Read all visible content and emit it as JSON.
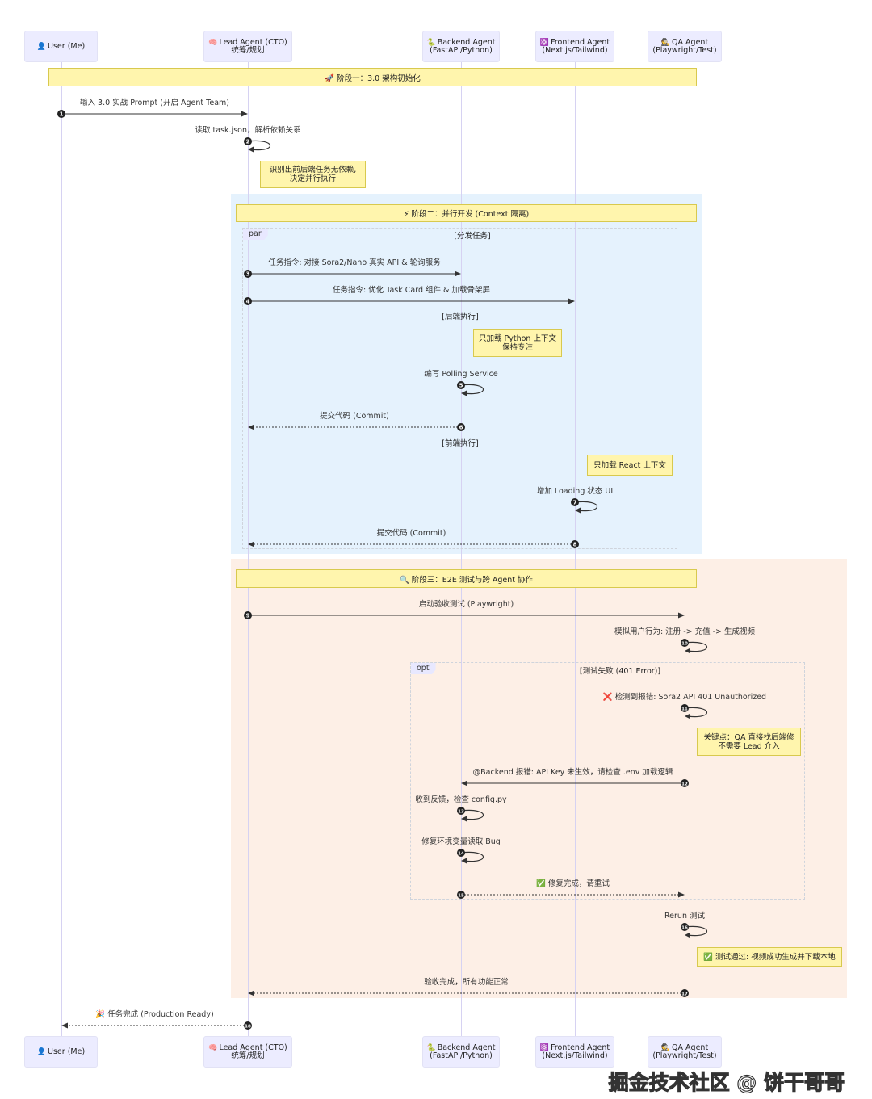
{
  "participants": [
    {
      "id": "user",
      "icon": "person-icon",
      "glyph": "👤",
      "line1": "User (Me)",
      "line2": ""
    },
    {
      "id": "lead",
      "icon": "brain-icon",
      "glyph": "🧠",
      "line1": "Lead Agent (CTO)",
      "line2": "统筹/规划"
    },
    {
      "id": "backend",
      "icon": "snake-icon",
      "glyph": "🐍",
      "line1": "Backend Agent",
      "line2": "(FastAPI/Python)"
    },
    {
      "id": "frontend",
      "icon": "atom-icon",
      "glyph": "⚛️",
      "line1": "Frontend Agent",
      "line2": "(Next.js/Tailwind)"
    },
    {
      "id": "qa",
      "icon": "detective-icon",
      "glyph": "🕵️",
      "line1": "QA Agent",
      "line2": "(Playwright/Test)"
    }
  ],
  "phases": [
    {
      "title": "🚀 阶段一：3.0 架构初始化",
      "icon": "rocket-icon"
    },
    {
      "title": "⚡ 阶段二：并行开发 (Context 隔离)",
      "icon": "lightning-icon",
      "bg": "#e5f2fd"
    },
    {
      "title": "🔍 阶段三：E2E 测试与跨 Agent 协作",
      "icon": "magnifier-icon",
      "bg": "#fdefe6"
    }
  ],
  "blocks": {
    "par": {
      "tag": "par",
      "sections": [
        "[分发任务]",
        "[后端执行]",
        "[前端执行]"
      ]
    },
    "opt": {
      "tag": "opt",
      "sections": [
        "[测试失败 (401 Error)]"
      ]
    }
  },
  "notes": [
    "识别出前后端任务无依赖,\n决定并行执行",
    "只加载 Python 上下文\n保持专注",
    "只加载 React 上下文",
    "关键点：QA 直接找后端修\n不需要 Lead 介入",
    "✅ 测试通过: 视频成功生成并下载本地"
  ],
  "messages": [
    {
      "n": "1",
      "from": "user",
      "to": "lead",
      "text": "输入 3.0 实战 Prompt (开启 Agent Team)",
      "dashed": false
    },
    {
      "n": "2",
      "from": "lead",
      "to": "lead",
      "text": "读取 task.json，解析依赖关系",
      "dashed": false
    },
    {
      "n": "3",
      "from": "lead",
      "to": "backend",
      "text": "任务指令: 对接 Sora2/Nano 真实 API & 轮询服务",
      "dashed": false
    },
    {
      "n": "4",
      "from": "lead",
      "to": "frontend",
      "text": "任务指令: 优化 Task Card 组件 & 加载骨架屏",
      "dashed": false
    },
    {
      "n": "5",
      "from": "backend",
      "to": "backend",
      "text": "编写 Polling Service",
      "dashed": false
    },
    {
      "n": "6",
      "from": "backend",
      "to": "lead",
      "text": "提交代码 (Commit)",
      "dashed": true
    },
    {
      "n": "7",
      "from": "frontend",
      "to": "frontend",
      "text": "增加 Loading 状态 UI",
      "dashed": false
    },
    {
      "n": "8",
      "from": "frontend",
      "to": "lead",
      "text": "提交代码 (Commit)",
      "dashed": true
    },
    {
      "n": "9",
      "from": "lead",
      "to": "qa",
      "text": "启动验收测试 (Playwright)",
      "dashed": false
    },
    {
      "n": "10",
      "from": "qa",
      "to": "qa",
      "text": "模拟用户行为: 注册 -> 充值 -> 生成视频",
      "dashed": false
    },
    {
      "n": "11",
      "from": "qa",
      "to": "qa",
      "text": "❌ 检测到报错: Sora2 API 401 Unauthorized",
      "dashed": false
    },
    {
      "n": "12",
      "from": "qa",
      "to": "backend",
      "text": "@Backend 报错: API Key 未生效，请检查 .env 加载逻辑",
      "dashed": false
    },
    {
      "n": "13",
      "from": "backend",
      "to": "backend",
      "text": "收到反馈，检查 config.py",
      "dashed": false
    },
    {
      "n": "14",
      "from": "backend",
      "to": "backend",
      "text": "修复环境变量读取 Bug",
      "dashed": false
    },
    {
      "n": "15",
      "from": "backend",
      "to": "qa",
      "text": "✅ 修复完成，请重试",
      "dashed": true
    },
    {
      "n": "16",
      "from": "qa",
      "to": "qa",
      "text": "Rerun 测试",
      "dashed": false
    },
    {
      "n": "17",
      "from": "qa",
      "to": "lead",
      "text": "验收完成，所有功能正常",
      "dashed": true
    },
    {
      "n": "18",
      "from": "lead",
      "to": "user",
      "text": "🎉 任务完成 (Production Ready)",
      "dashed": true
    }
  ],
  "watermark": "掘金技术社区 @ 饼干哥哥"
}
